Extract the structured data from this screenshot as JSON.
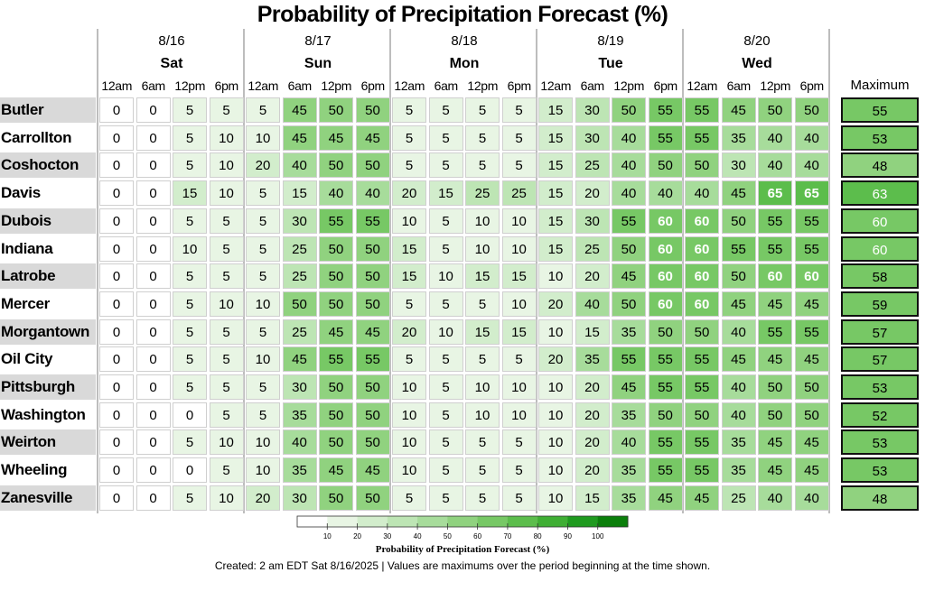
{
  "chart_data": {
    "type": "heatmap",
    "title": "Probability of Precipitation Forecast (%)",
    "days": [
      {
        "date": "8/16",
        "dow": "Sat"
      },
      {
        "date": "8/17",
        "dow": "Sun"
      },
      {
        "date": "8/18",
        "dow": "Mon"
      },
      {
        "date": "8/19",
        "dow": "Tue"
      },
      {
        "date": "8/20",
        "dow": "Wed"
      }
    ],
    "times": [
      "12am",
      "6am",
      "12pm",
      "6pm"
    ],
    "max_label": "Maximum",
    "rows": [
      {
        "name": "Butler",
        "values": [
          0,
          0,
          5,
          5,
          5,
          45,
          50,
          50,
          5,
          5,
          5,
          5,
          15,
          30,
          50,
          55,
          55,
          45,
          50,
          50
        ],
        "max": 55
      },
      {
        "name": "Carrollton",
        "values": [
          0,
          0,
          5,
          10,
          10,
          45,
          45,
          45,
          5,
          5,
          5,
          5,
          15,
          30,
          40,
          55,
          55,
          35,
          40,
          40
        ],
        "max": 53
      },
      {
        "name": "Coshocton",
        "values": [
          0,
          0,
          5,
          10,
          20,
          40,
          50,
          50,
          5,
          5,
          5,
          5,
          15,
          25,
          40,
          50,
          50,
          30,
          40,
          40
        ],
        "max": 48
      },
      {
        "name": "Davis",
        "values": [
          0,
          0,
          15,
          10,
          5,
          15,
          40,
          40,
          20,
          15,
          25,
          25,
          15,
          20,
          40,
          40,
          40,
          45,
          65,
          65
        ],
        "max": 63
      },
      {
        "name": "Dubois",
        "values": [
          0,
          0,
          5,
          5,
          5,
          30,
          55,
          55,
          10,
          5,
          10,
          10,
          15,
          30,
          55,
          60,
          60,
          50,
          55,
          55
        ],
        "max": 60
      },
      {
        "name": "Indiana",
        "values": [
          0,
          0,
          10,
          5,
          5,
          25,
          50,
          50,
          15,
          5,
          10,
          10,
          15,
          25,
          50,
          60,
          60,
          55,
          55,
          55
        ],
        "max": 60
      },
      {
        "name": "Latrobe",
        "values": [
          0,
          0,
          5,
          5,
          5,
          25,
          50,
          50,
          15,
          10,
          15,
          15,
          10,
          20,
          45,
          60,
          60,
          50,
          60,
          60
        ],
        "max": 58
      },
      {
        "name": "Mercer",
        "values": [
          0,
          0,
          5,
          10,
          10,
          50,
          50,
          50,
          5,
          5,
          5,
          10,
          20,
          40,
          50,
          60,
          60,
          45,
          45,
          45
        ],
        "max": 59
      },
      {
        "name": "Morgantown",
        "values": [
          0,
          0,
          5,
          5,
          5,
          25,
          45,
          45,
          20,
          10,
          15,
          15,
          10,
          15,
          35,
          50,
          50,
          40,
          55,
          55
        ],
        "max": 57
      },
      {
        "name": "Oil City",
        "values": [
          0,
          0,
          5,
          5,
          10,
          45,
          55,
          55,
          5,
          5,
          5,
          5,
          20,
          35,
          55,
          55,
          55,
          45,
          45,
          45
        ],
        "max": 57
      },
      {
        "name": "Pittsburgh",
        "values": [
          0,
          0,
          5,
          5,
          5,
          30,
          50,
          50,
          10,
          5,
          10,
          10,
          10,
          20,
          45,
          55,
          55,
          40,
          50,
          50
        ],
        "max": 53
      },
      {
        "name": "Washington",
        "values": [
          0,
          0,
          0,
          5,
          5,
          35,
          50,
          50,
          10,
          5,
          10,
          10,
          10,
          20,
          35,
          50,
          50,
          40,
          50,
          50
        ],
        "max": 52
      },
      {
        "name": "Weirton",
        "values": [
          0,
          0,
          5,
          10,
          10,
          40,
          50,
          50,
          10,
          5,
          5,
          5,
          10,
          20,
          40,
          55,
          55,
          35,
          45,
          45
        ],
        "max": 53
      },
      {
        "name": "Wheeling",
        "values": [
          0,
          0,
          0,
          5,
          10,
          35,
          45,
          45,
          10,
          5,
          5,
          5,
          10,
          20,
          35,
          55,
          55,
          35,
          45,
          45
        ],
        "max": 53
      },
      {
        "name": "Zanesville",
        "values": [
          0,
          0,
          5,
          10,
          20,
          30,
          50,
          50,
          5,
          5,
          5,
          5,
          10,
          15,
          35,
          45,
          45,
          25,
          40,
          40
        ],
        "max": 48
      }
    ],
    "colorscale": {
      "ticks": [
        10,
        20,
        30,
        40,
        50,
        60,
        70,
        80,
        90,
        100
      ],
      "colors": [
        "#ffffff",
        "#e8f5e4",
        "#d2edcc",
        "#bde5b4",
        "#a7dc9b",
        "#90d27f",
        "#77c865",
        "#5cbd4c",
        "#3fae34",
        "#1f9a1f",
        "#0b7f0b"
      ],
      "label": "Probability of Precipitation Forecast (%)"
    }
  },
  "footer": "Created: 2 am EDT Sat 8/16/2025  |  Values are maximums over the period beginning at the time shown."
}
